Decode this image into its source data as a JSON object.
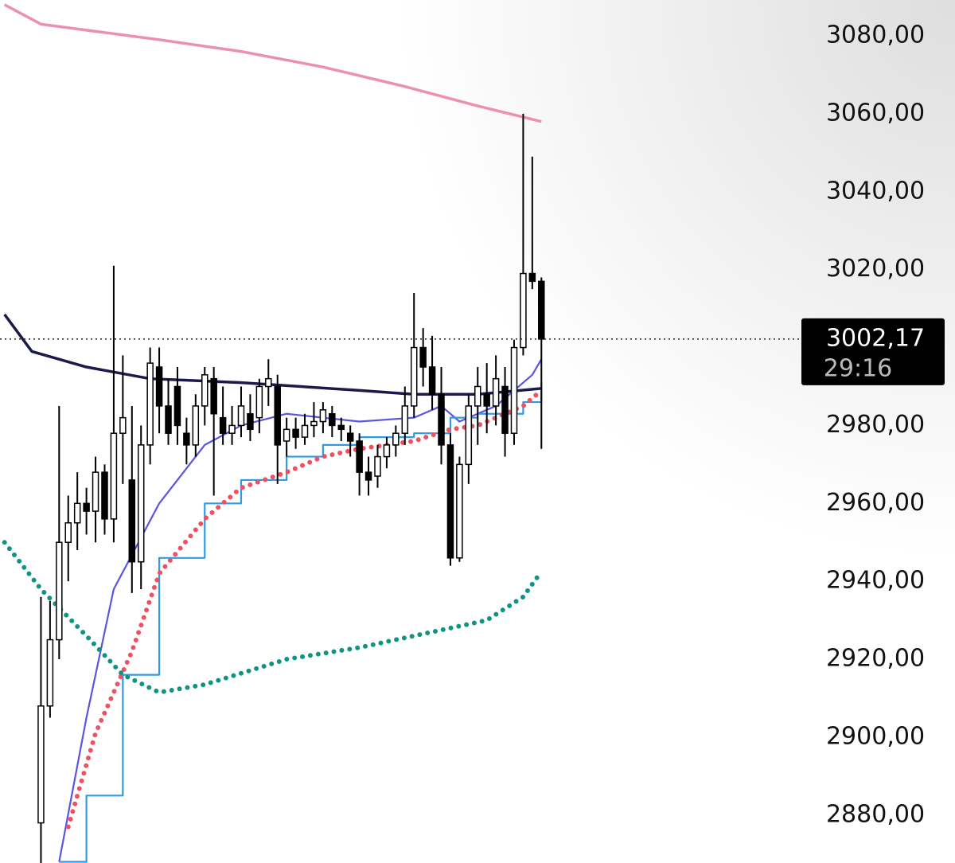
{
  "chart_data": {
    "type": "candlestick",
    "ylim": [
      2867.7,
      3089.2
    ],
    "yticks": [
      {
        "value": 2880,
        "label": "2880,00"
      },
      {
        "value": 2900,
        "label": "2900,00"
      },
      {
        "value": 2920,
        "label": "2920,00"
      },
      {
        "value": 2940,
        "label": "2940,00"
      },
      {
        "value": 2960,
        "label": "2960,00"
      },
      {
        "value": 2980,
        "label": "2980,00"
      },
      {
        "value": 3000,
        "label": "3000,00"
      },
      {
        "value": 3020,
        "label": "3020,00"
      },
      {
        "value": 3040,
        "label": "3040,00"
      },
      {
        "value": 3060,
        "label": "3060,00"
      },
      {
        "value": 3080,
        "label": "3080,00"
      }
    ],
    "xlim": [
      0,
      60
    ],
    "last_price": {
      "value": 3002.17,
      "label": "3002,17"
    },
    "countdown": "29:16",
    "up_color": "#ffffff",
    "down_color": "#000000",
    "candles": {
      "x": [
        4,
        5,
        6,
        7,
        8,
        9,
        10,
        11,
        12,
        13,
        14,
        15,
        16,
        17,
        18,
        19,
        20,
        21,
        22,
        23,
        24,
        25,
        26,
        27,
        28,
        29,
        30,
        31,
        32,
        33,
        34,
        35,
        36,
        37,
        38,
        39,
        40,
        41,
        42,
        43,
        44,
        45,
        46,
        47,
        48,
        49,
        50,
        51,
        52,
        53,
        54,
        55,
        56,
        57,
        58,
        59
      ],
      "open": [
        2878,
        2908,
        2925,
        2950,
        2955,
        2960,
        2958,
        2968,
        2956,
        2978,
        2966,
        2945,
        2975,
        2995,
        2985,
        2990,
        2978,
        2975,
        2985,
        2992,
        2982,
        2978,
        2980,
        2983,
        2982,
        2990,
        2990,
        2976,
        2979,
        2977,
        2980,
        2981,
        2983,
        2980,
        2978,
        2976,
        2968,
        2967,
        2972,
        2975,
        2978,
        2985,
        3000,
        2995,
        2988,
        2975,
        2946,
        2970,
        2985,
        2988,
        2985,
        2990,
        2978,
        3000,
        3019,
        3017
      ],
      "high": [
        2936,
        2935,
        2985,
        2962,
        2968,
        2964,
        2972,
        2970,
        3021,
        2998,
        2985,
        2980,
        3000,
        3000,
        2992,
        2995,
        2982,
        2988,
        2995,
        2995,
        2990,
        2985,
        2990,
        2988,
        2992,
        2997,
        2993,
        2982,
        2982,
        2983,
        2986,
        2986,
        2985,
        2982,
        2980,
        2978,
        2972,
        2975,
        2977,
        2980,
        2990,
        3014,
        3005,
        3003,
        2995,
        2978,
        2972,
        2988,
        2995,
        2996,
        2998,
        2995,
        3002,
        3060,
        3049,
        3018
      ],
      "low": [
        2867,
        2905,
        2920,
        2940,
        2948,
        2952,
        2950,
        2952,
        2950,
        2965,
        2937,
        2938,
        2970,
        2978,
        2975,
        2975,
        2970,
        2972,
        2980,
        2962,
        2975,
        2975,
        2977,
        2976,
        2978,
        2985,
        2965,
        2972,
        2974,
        2975,
        2977,
        2978,
        2977,
        2976,
        2972,
        2962,
        2962,
        2964,
        2969,
        2972,
        2975,
        2982,
        2990,
        2984,
        2970,
        2944,
        2945,
        2965,
        2975,
        2978,
        2980,
        2972,
        2975,
        2998,
        3015,
        2974
      ],
      "close": [
        2908,
        2925,
        2950,
        2955,
        2960,
        2958,
        2968,
        2956,
        2978,
        2982,
        2945,
        2975,
        2996,
        2985,
        2978,
        2980,
        2975,
        2985,
        2993,
        2983,
        2978,
        2980,
        2985,
        2979,
        2990,
        2992,
        2975,
        2979,
        2977,
        2980,
        2981,
        2984,
        2980,
        2979,
        2976,
        2968,
        2966,
        2972,
        2975,
        2978,
        2985,
        3000,
        2995,
        2988,
        2975,
        2946,
        2970,
        2985,
        2990,
        2985,
        2992,
        2978,
        3000,
        3019,
        3017,
        3002.17
      ]
    },
    "overlays": [
      {
        "color": "#ec8fb5",
        "style": "line",
        "x": [
          0,
          4,
          17,
          26,
          35,
          44,
          52,
          59
        ],
        "values": [
          3088,
          3083,
          3079,
          3076,
          3072,
          3067,
          3062,
          3058
        ]
      },
      {
        "color": "#1c1a4a",
        "style": "line",
        "x": [
          0,
          3,
          9,
          16,
          26,
          39,
          45,
          52,
          59
        ],
        "values": [
          3008.5,
          2999,
          2995,
          2992,
          2991,
          2989,
          2988,
          2988,
          2989.5
        ]
      },
      {
        "color": "#5b55e0",
        "style": "line",
        "x": [
          6,
          9,
          12,
          17,
          22,
          26,
          31,
          39,
          45,
          48,
          50,
          54,
          58,
          59
        ],
        "values": [
          2868,
          2905,
          2938,
          2960,
          2975,
          2980,
          2983,
          2981,
          2982,
          2985,
          2981,
          2985,
          2993,
          2997
        ]
      },
      {
        "color": "#2f9be8",
        "style": "step",
        "x": [
          6,
          9,
          13,
          17,
          22,
          26,
          31,
          35,
          39,
          45,
          49,
          52,
          57,
          59
        ],
        "values": [
          2868,
          2885,
          2916,
          2946,
          2960,
          2966,
          2972,
          2975,
          2977,
          2978,
          2982,
          2983,
          2986,
          2991
        ]
      },
      {
        "color": "#f0505f",
        "style": "dots",
        "x": [
          7,
          10,
          14,
          17,
          22,
          26,
          31,
          35,
          39,
          45,
          49,
          52,
          57,
          59
        ],
        "values": [
          2877,
          2901,
          2922,
          2942,
          2956,
          2964,
          2968,
          2972,
          2974,
          2976,
          2979,
          2980,
          2985,
          2989
        ]
      },
      {
        "color": "#0f9484",
        "style": "dots",
        "x": [
          0,
          4,
          9,
          13,
          17,
          22,
          31,
          39,
          45,
          53,
          57,
          59
        ],
        "values": [
          2950,
          2938,
          2926,
          2916,
          2911.5,
          2913.5,
          2920,
          2923,
          2926,
          2930,
          2936,
          2942.5
        ]
      }
    ]
  }
}
